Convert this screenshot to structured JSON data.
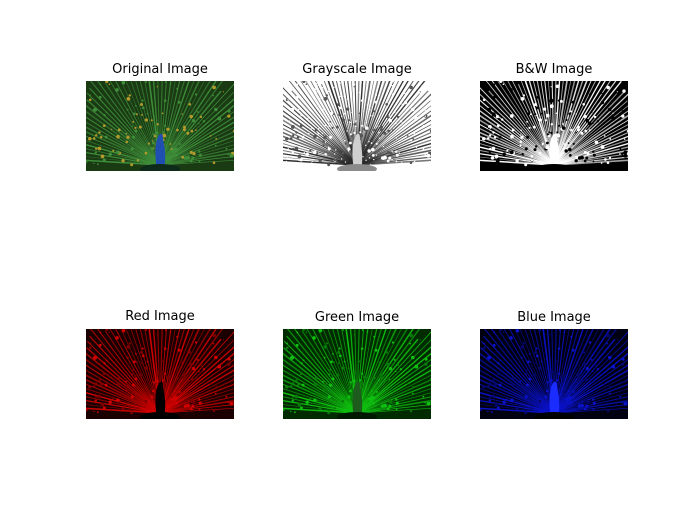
{
  "figure": {
    "panels": [
      {
        "id": "original",
        "title": "Original Image",
        "mode": "original"
      },
      {
        "id": "grayscale",
        "title": "Grayscale Image",
        "mode": "grayscale"
      },
      {
        "id": "bw",
        "title": "B&W Image",
        "mode": "bw"
      },
      {
        "id": "red",
        "title": "Red Image",
        "mode": "red"
      },
      {
        "id": "green",
        "title": "Green Image",
        "mode": "green"
      },
      {
        "id": "blue",
        "title": "Blue Image",
        "mode": "blue"
      }
    ]
  },
  "colors": {
    "background": "#ffffff",
    "peacock_body": "#1f4fb0",
    "feather_green": "#3f8f3a",
    "feather_gold": "#b59a2c",
    "eye_blue": "#1d3f8f",
    "red_channel": "#d10000",
    "green_channel": "#10c010",
    "blue_channel": "#0a12c8"
  }
}
